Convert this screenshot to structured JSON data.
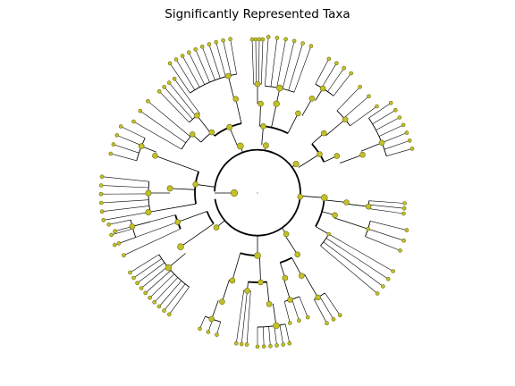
{
  "figure": {
    "title": "Significantly Represented Taxa"
  },
  "colors": {
    "node_fill": "#c2c12a",
    "node_stroke": "#6e6e10",
    "edge": "#000000"
  },
  "tree": {
    "layout": "radial",
    "node_label_visibility": "hidden"
  }
}
